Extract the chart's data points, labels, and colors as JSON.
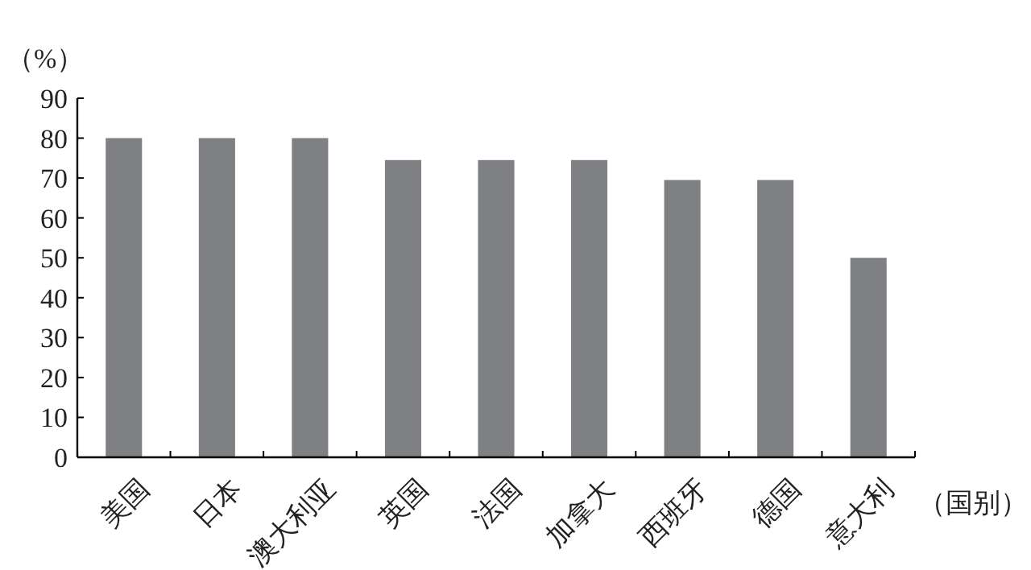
{
  "chart_data": {
    "type": "bar",
    "ylabel": "（%）",
    "xlabel": "（国别）",
    "categories": [
      "美国",
      "日本",
      "澳大利亚",
      "英国",
      "法国",
      "加拿大",
      "西班牙",
      "德国",
      "意大利"
    ],
    "values": [
      80,
      80,
      80,
      74.5,
      74.5,
      74.5,
      69.5,
      69.5,
      50
    ],
    "color": "#7f8084",
    "ylim": [
      0,
      90
    ],
    "yticks": [
      0,
      10,
      20,
      30,
      40,
      50,
      60,
      70,
      80,
      90
    ],
    "grid": false
  }
}
